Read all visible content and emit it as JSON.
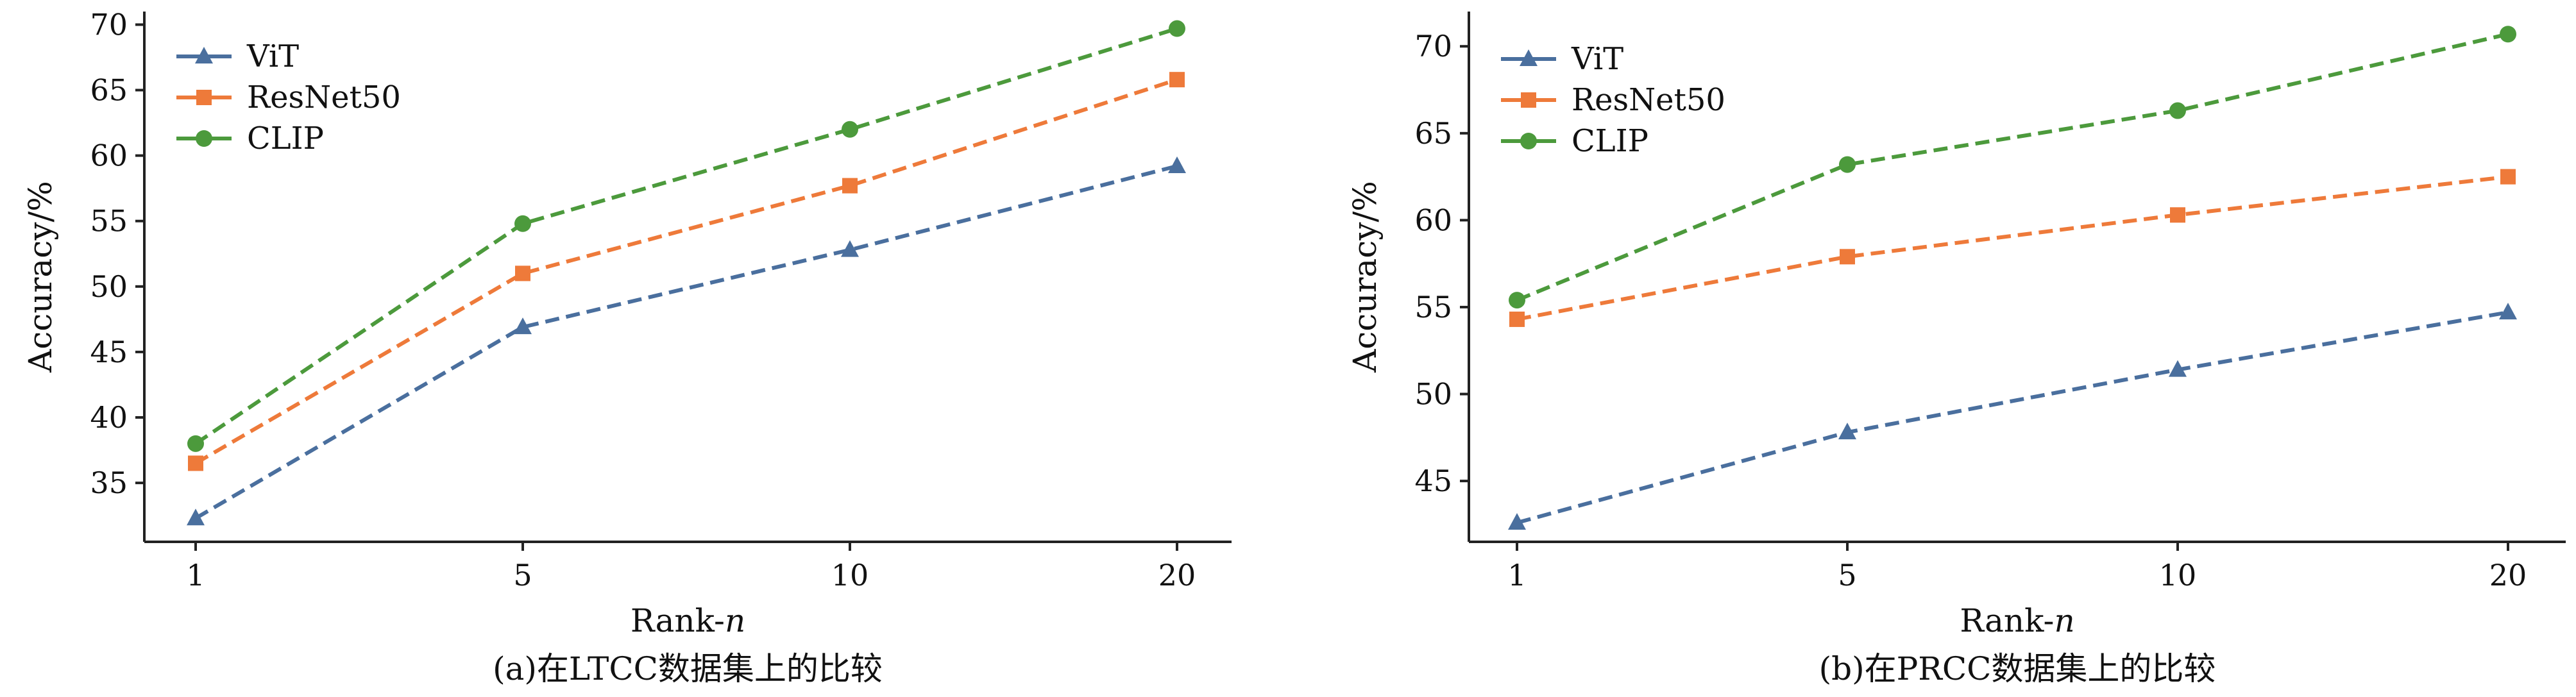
{
  "colors": {
    "ViT": "#4a6f9e",
    "ResNet50": "#ee7a3a",
    "CLIP": "#4c9a3c",
    "axis": "#222222"
  },
  "chart_data": [
    {
      "type": "line",
      "caption": "(a)在LTCC数据集上的比较",
      "xlabel": "Rank-n",
      "ylabel": "Accuracy/%",
      "categories": [
        "1",
        "5",
        "10",
        "20"
      ],
      "ylim": [
        30.5,
        71
      ],
      "yticks": [
        35,
        40,
        45,
        50,
        55,
        60,
        65,
        70
      ],
      "legend_position": "top-left",
      "series": [
        {
          "name": "ViT",
          "marker": "triangle",
          "values": [
            32.3,
            46.9,
            52.8,
            59.2
          ]
        },
        {
          "name": "ResNet50",
          "marker": "square",
          "values": [
            36.5,
            51.0,
            57.7,
            65.8
          ]
        },
        {
          "name": "CLIP",
          "marker": "circle",
          "values": [
            38.0,
            54.8,
            62.0,
            69.7
          ]
        }
      ]
    },
    {
      "type": "line",
      "caption": "(b)在PRCC数据集上的比较",
      "xlabel": "Rank-n",
      "ylabel": "Accuracy/%",
      "categories": [
        "1",
        "5",
        "10",
        "20"
      ],
      "ylim": [
        41.5,
        72
      ],
      "yticks": [
        45,
        50,
        55,
        60,
        65,
        70
      ],
      "legend_position": "top-left",
      "series": [
        {
          "name": "ViT",
          "marker": "triangle",
          "values": [
            42.6,
            47.8,
            51.4,
            54.7
          ]
        },
        {
          "name": "ResNet50",
          "marker": "square",
          "values": [
            54.3,
            57.9,
            60.3,
            62.5
          ]
        },
        {
          "name": "CLIP",
          "marker": "circle",
          "values": [
            55.4,
            63.2,
            66.3,
            70.7
          ]
        }
      ]
    }
  ]
}
